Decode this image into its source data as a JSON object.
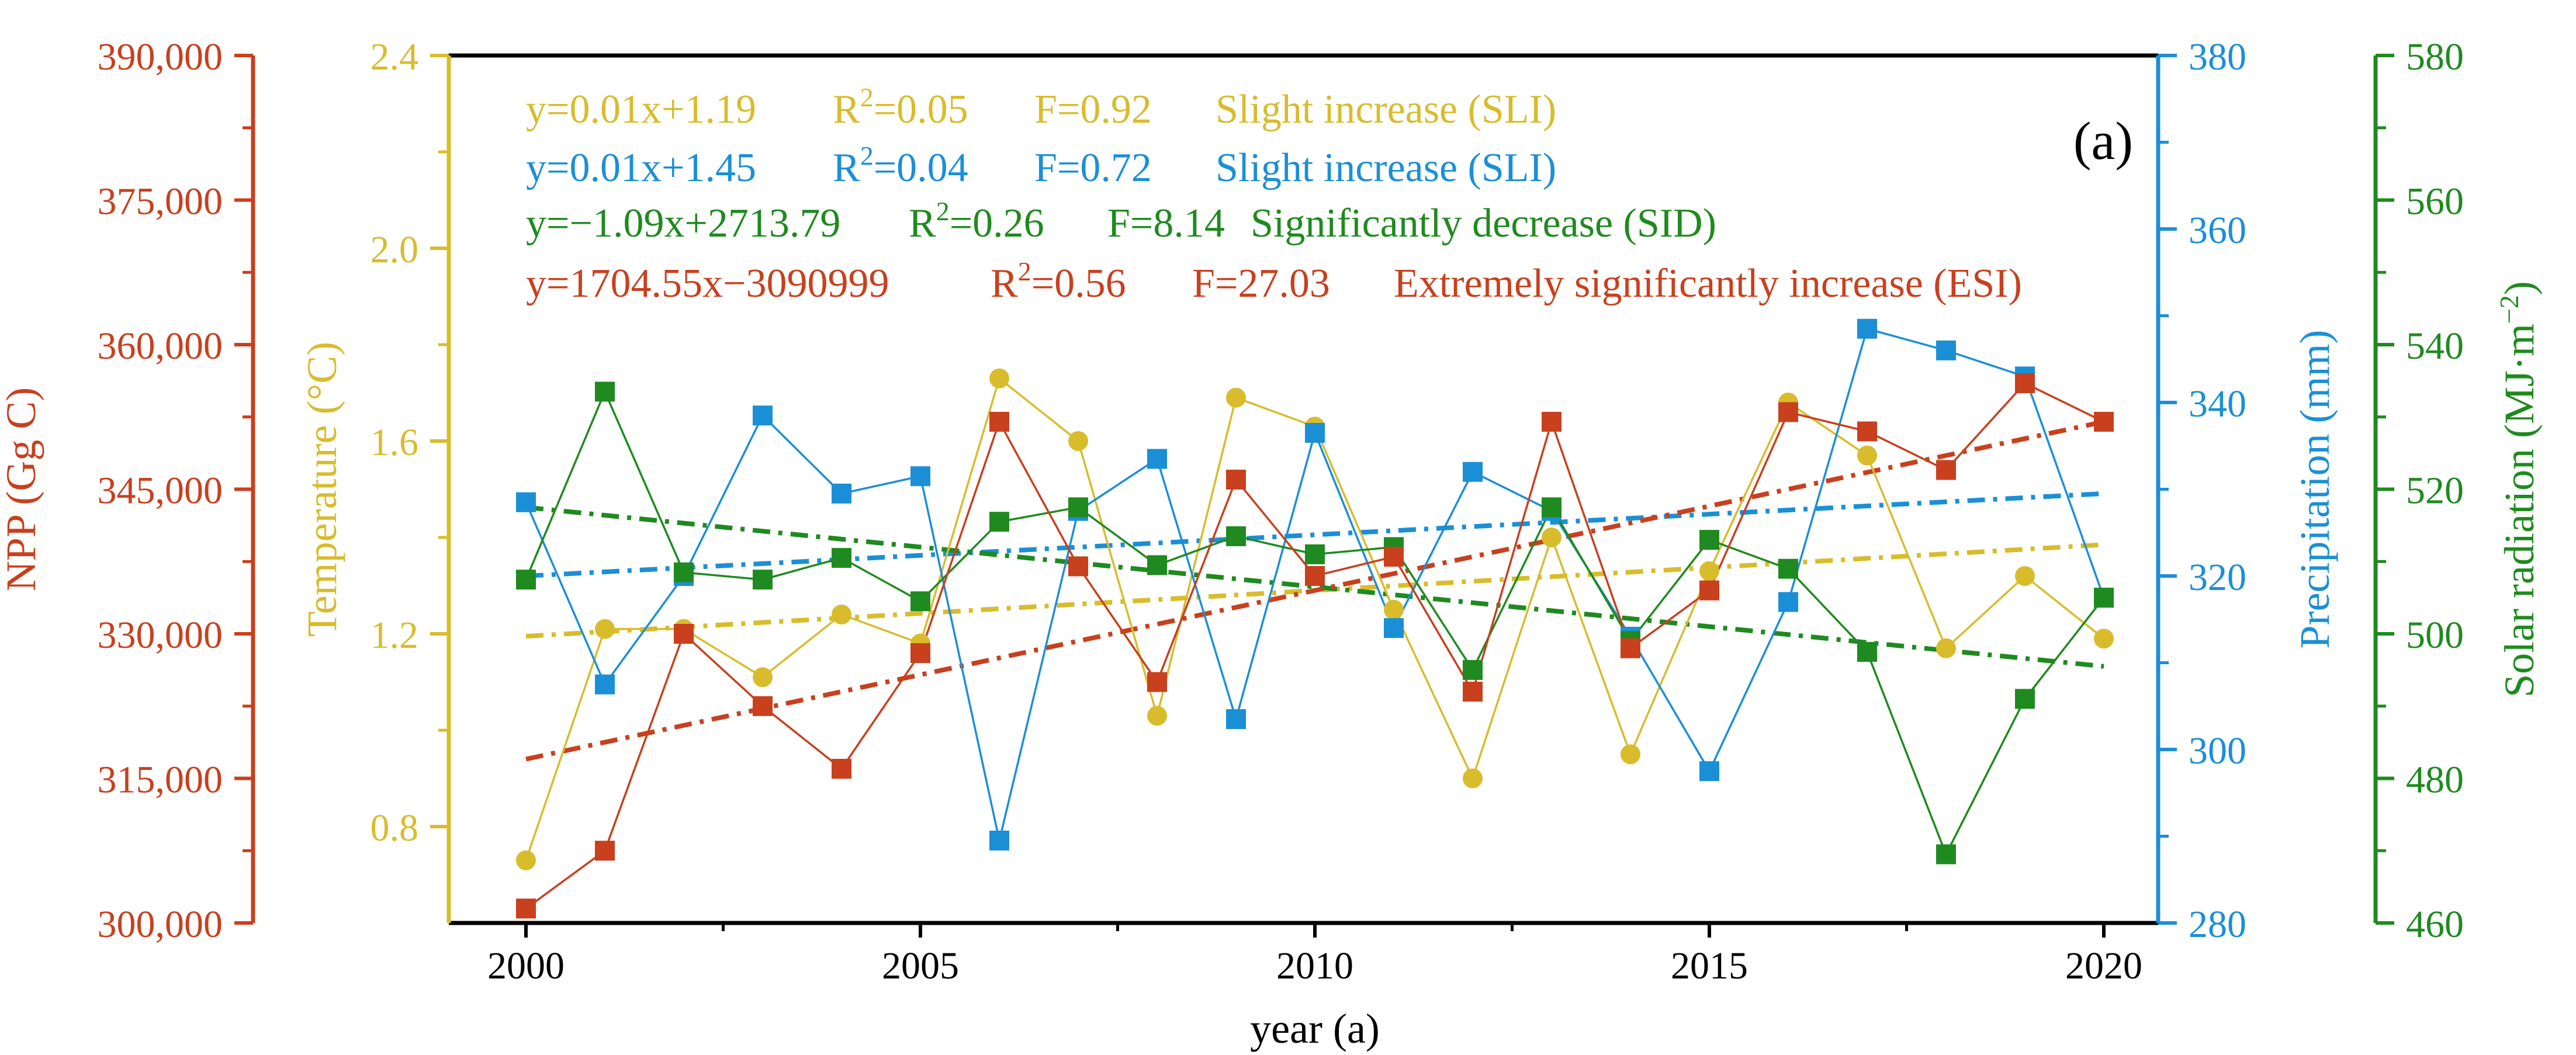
{
  "chart_data": {
    "type": "line",
    "panel_label": "(a)",
    "xlabel": "year (a)",
    "xlim": [
      1999,
      2020.7
    ],
    "x_ticks": [
      2000,
      2005,
      2010,
      2015,
      2020
    ],
    "x_ticklabels": [
      "2000",
      "2005",
      "2010",
      "2015",
      "2020"
    ],
    "x": [
      2000,
      2001,
      2002,
      2003,
      2004,
      2005,
      2006,
      2007,
      2008,
      2009,
      2010,
      2011,
      2012,
      2013,
      2014,
      2015,
      2016,
      2017,
      2018,
      2019,
      2020
    ],
    "axes": [
      {
        "key": "npp",
        "label_main": "NPP (Gg C)",
        "color": "#c8401e",
        "min": 300000,
        "max": 390000,
        "ticks": [
          300000,
          315000,
          330000,
          345000,
          360000,
          375000,
          390000
        ],
        "ticklabels": [
          "300,000",
          "315,000",
          "330,000",
          "345,000",
          "360,000",
          "375,000",
          "390,000"
        ]
      },
      {
        "key": "temp",
        "label_main": "Temperature (°C)",
        "color": "#d8bc2c",
        "min": 0.6,
        "max": 2.4,
        "ticks": [
          0.8,
          1.2,
          1.6,
          2.0,
          2.4
        ],
        "ticklabels": [
          "0.8",
          "1.2",
          "1.6",
          "2.0",
          "2.4"
        ]
      },
      {
        "key": "precip",
        "label_main": "Precipitation (mm)",
        "color": "#1b8fd6",
        "min": 280,
        "max": 380,
        "ticks": [
          280,
          300,
          320,
          340,
          360,
          380
        ],
        "ticklabels": [
          "280",
          "300",
          "320",
          "340",
          "360",
          "380"
        ]
      },
      {
        "key": "solar",
        "label_main": "Solar radiation (MJ·m",
        "label_sup": "−2",
        "label_tail": ")",
        "color": "#1f8a1f",
        "min": 460,
        "max": 580,
        "ticks": [
          460,
          480,
          500,
          520,
          540,
          560,
          580
        ],
        "ticklabels": [
          "460",
          "480",
          "500",
          "520",
          "540",
          "560",
          "580"
        ]
      }
    ],
    "series": [
      {
        "name": "Temperature",
        "axis": "temp",
        "marker": "circle",
        "color": "#d8bc2c",
        "values": [
          0.73,
          1.21,
          1.21,
          1.11,
          1.24,
          1.18,
          1.73,
          1.6,
          1.03,
          1.69,
          1.63,
          1.25,
          0.9,
          1.4,
          0.95,
          1.33,
          1.68,
          1.57,
          1.17,
          1.32,
          1.19
        ],
        "trend": {
          "equation": "y=0.01x+1.19",
          "r2_label": "R",
          "r2_value": "=0.05",
          "f": "F=0.92",
          "class": "Slight increase (SLI)",
          "start": 1.195,
          "end": 1.385
        }
      },
      {
        "name": "Precipitation",
        "axis": "precip",
        "marker": "square",
        "color": "#1b8fd6",
        "values": [
          328.5,
          307.5,
          320.0,
          338.5,
          329.5,
          331.5,
          289.5,
          327.5,
          333.5,
          303.5,
          336.5,
          314.0,
          332.0,
          327.5,
          313.0,
          297.5,
          317.0,
          348.5,
          346.0,
          343.0,
          317.5
        ],
        "trend": {
          "equation": "y=0.01x+1.45",
          "r2_label": "R",
          "r2_value": "=0.04",
          "f": "F=0.72",
          "class": "Slight increase (SLI)",
          "start": 320.0,
          "end": 329.5
        }
      },
      {
        "name": "Solar radiation",
        "axis": "solar",
        "marker": "square",
        "color": "#1f8a1f",
        "values": [
          507.5,
          533.5,
          508.5,
          507.5,
          510.5,
          504.5,
          515.5,
          517.5,
          509.5,
          513.5,
          511.0,
          512.0,
          495.0,
          517.5,
          499.0,
          513.0,
          509.0,
          497.5,
          469.5,
          491.0,
          505.0
        ]
      },
      {
        "name": "NPP",
        "axis": "npp",
        "marker": "square",
        "color": "#c8401e",
        "values": [
          301500,
          307500,
          330000,
          322500,
          316000,
          328000,
          352000,
          337000,
          325000,
          346000,
          336000,
          338000,
          324000,
          352000,
          328500,
          334500,
          353000,
          351000,
          347000,
          356000,
          352000
        ]
      }
    ],
    "trends": [
      {
        "axis": "temp",
        "color": "#d8bc2c",
        "start": 1.195,
        "end": 1.385
      },
      {
        "axis": "precip",
        "color": "#1b8fd6",
        "start": 320.0,
        "end": 329.5
      },
      {
        "axis": "solar",
        "color": "#1f8a1f",
        "start": 517.5,
        "end": 495.5
      },
      {
        "axis": "npp",
        "color": "#c8401e",
        "start": 317000,
        "end": 352000
      }
    ],
    "annotations": [
      {
        "color": "#d8bc2c",
        "equation": "y=0.01x+1.19",
        "r2_value": "=0.05",
        "f": "F=0.92",
        "class": "Slight increase (SLI)"
      },
      {
        "color": "#1b8fd6",
        "equation": "y=0.01x+1.45",
        "r2_value": "=0.04",
        "f": "F=0.72",
        "class": "Slight increase (SLI)"
      },
      {
        "color": "#1f8a1f",
        "equation": "y=−1.09x+2713.79",
        "r2_value": "=0.26",
        "f": "F=8.14",
        "class": "Significantly decrease (SID)"
      },
      {
        "color": "#c8401e",
        "equation": "y=1704.55x−3090999",
        "r2_value": "=0.56",
        "f": "F=27.03",
        "class": "Extremely significantly increase  (ESI)"
      }
    ],
    "r2_symbol": "R",
    "r2_sup": "2"
  }
}
